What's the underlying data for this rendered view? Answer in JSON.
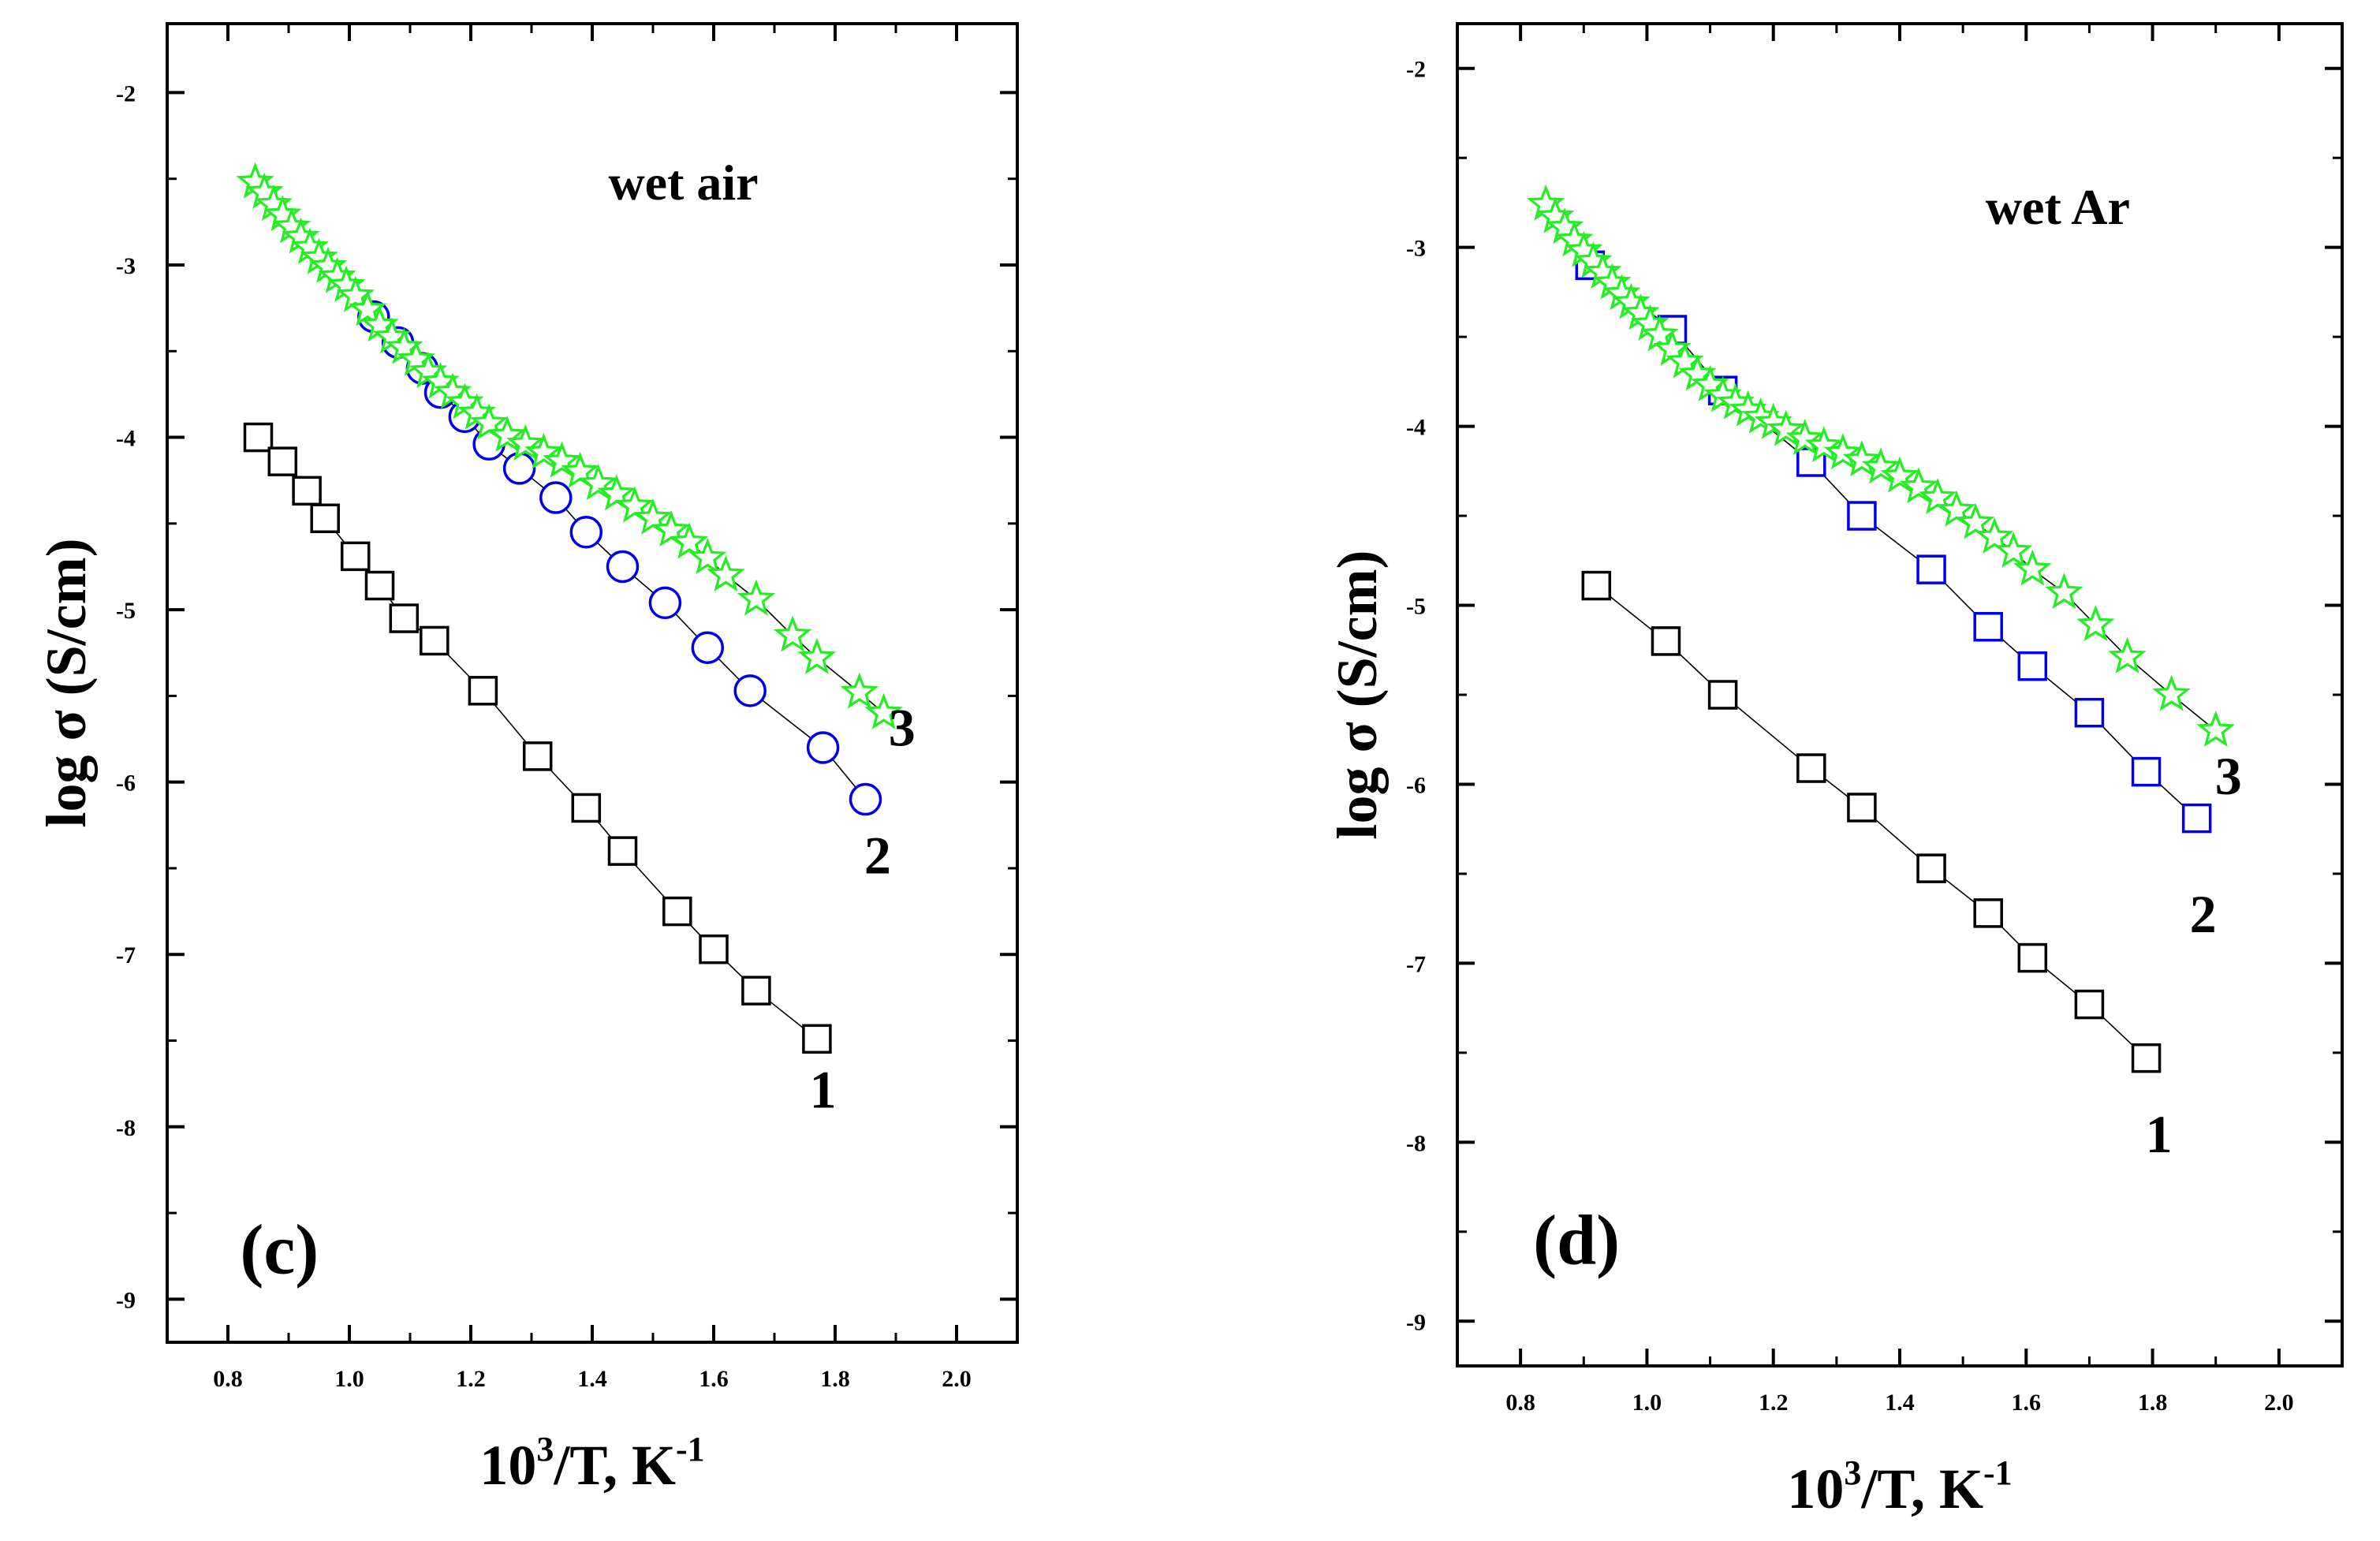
{
  "chart_data": [
    {
      "type": "scatter",
      "panel_label": "(c)",
      "annotation": "wet air",
      "xlabel_base": "10",
      "xlabel_sup": "3",
      "xlabel_mid": "/T, K",
      "xlabel_sup2": "-1",
      "ylabel": "log σ (S/cm)",
      "xlim": [
        0.7,
        2.1
      ],
      "ylim": [
        -9.25,
        -1.6
      ],
      "xticks": [
        0.8,
        1.0,
        1.2,
        1.4,
        1.6,
        1.8,
        2.0
      ],
      "xtick_labels": [
        "0.8",
        "1.0",
        "1.2",
        "1.4",
        "1.6",
        "1.8",
        "2.0"
      ],
      "yticks": [
        -9,
        -8,
        -7,
        -6,
        -5,
        -4,
        -3,
        -2
      ],
      "ytick_labels": [
        "-9",
        "-8",
        "-7",
        "-6",
        "-5",
        "-4",
        "-3",
        "-2"
      ],
      "series": [
        {
          "name": "1",
          "label": "1",
          "marker": "square",
          "color": "#000000",
          "connected": true,
          "label_at": [
            1.78,
            -7.78
          ],
          "x": [
            0.85,
            0.89,
            0.93,
            0.96,
            1.01,
            1.05,
            1.09,
            1.14,
            1.22,
            1.31,
            1.39,
            1.45,
            1.54,
            1.6,
            1.67,
            1.77
          ],
          "y": [
            -4.0,
            -4.14,
            -4.31,
            -4.47,
            -4.69,
            -4.86,
            -5.05,
            -5.18,
            -5.47,
            -5.85,
            -6.15,
            -6.4,
            -6.75,
            -6.97,
            -7.21,
            -7.49
          ]
        },
        {
          "name": "2",
          "label": "2",
          "marker": "circle",
          "color": "#0000ee",
          "connected": true,
          "label_at": [
            1.87,
            -6.42
          ],
          "x": [
            1.04,
            1.08,
            1.12,
            1.15,
            1.19,
            1.23,
            1.28,
            1.34,
            1.39,
            1.45,
            1.52,
            1.59,
            1.66,
            1.78,
            1.85
          ],
          "y": [
            -3.3,
            -3.45,
            -3.6,
            -3.74,
            -3.88,
            -4.04,
            -4.18,
            -4.35,
            -4.55,
            -4.75,
            -4.96,
            -5.22,
            -5.47,
            -5.8,
            -6.1
          ]
        },
        {
          "name": "3",
          "label": "3",
          "marker": "star",
          "color": "#22ee22",
          "connected": true,
          "label_at": [
            1.91,
            -5.68
          ],
          "x": [
            0.845,
            0.86,
            0.875,
            0.89,
            0.905,
            0.92,
            0.935,
            0.95,
            0.965,
            0.98,
            0.995,
            1.01,
            1.03,
            1.05,
            1.07,
            1.09,
            1.11,
            1.13,
            1.15,
            1.17,
            1.19,
            1.21,
            1.23,
            1.26,
            1.29,
            1.32,
            1.35,
            1.38,
            1.41,
            1.44,
            1.47,
            1.5,
            1.53,
            1.56,
            1.59,
            1.62,
            1.67,
            1.73,
            1.77,
            1.84,
            1.88
          ],
          "y": [
            -2.52,
            -2.58,
            -2.65,
            -2.71,
            -2.78,
            -2.84,
            -2.9,
            -2.96,
            -3.01,
            -3.07,
            -3.12,
            -3.18,
            -3.26,
            -3.35,
            -3.42,
            -3.48,
            -3.55,
            -3.62,
            -3.68,
            -3.74,
            -3.8,
            -3.86,
            -3.92,
            -3.99,
            -4.04,
            -4.09,
            -4.14,
            -4.2,
            -4.27,
            -4.33,
            -4.4,
            -4.47,
            -4.54,
            -4.61,
            -4.7,
            -4.8,
            -4.94,
            -5.15,
            -5.28,
            -5.48,
            -5.6
          ]
        }
      ]
    },
    {
      "type": "scatter",
      "panel_label": "(d)",
      "annotation": "wet Ar",
      "xlabel_base": "10",
      "xlabel_sup": "3",
      "xlabel_mid": "/T, K",
      "xlabel_sup2": "-1",
      "ylabel": "log σ (S/cm)",
      "xlim": [
        0.7,
        2.1
      ],
      "ylim": [
        -9.25,
        -1.75
      ],
      "xticks": [
        0.8,
        1.0,
        1.2,
        1.4,
        1.6,
        1.8,
        2.0
      ],
      "xtick_labels": [
        "0.8",
        "1.0",
        "1.2",
        "1.4",
        "1.6",
        "1.8",
        "2.0"
      ],
      "yticks": [
        -9,
        -8,
        -7,
        -6,
        -5,
        -4,
        -3,
        -2
      ],
      "ytick_labels": [
        "-9",
        "-8",
        "-7",
        "-6",
        "-5",
        "-4",
        "-3",
        "-2"
      ],
      "series": [
        {
          "name": "1",
          "label": "1",
          "marker": "square",
          "color": "#000000",
          "connected": true,
          "label_at": [
            1.81,
            -7.95
          ],
          "x": [
            0.92,
            1.03,
            1.12,
            1.26,
            1.34,
            1.45,
            1.54,
            1.61,
            1.7,
            1.79
          ],
          "y": [
            -4.89,
            -5.2,
            -5.5,
            -5.91,
            -6.13,
            -6.47,
            -6.72,
            -6.97,
            -7.23,
            -7.53
          ]
        },
        {
          "name": "2",
          "label": "2",
          "marker": "square",
          "color": "#0000ee",
          "connected": true,
          "label_at": [
            1.88,
            -6.72
          ],
          "x": [
            0.91,
            1.04,
            1.12,
            1.26,
            1.34,
            1.45,
            1.54,
            1.61,
            1.7,
            1.79,
            1.87
          ],
          "y": [
            -3.1,
            -3.46,
            -3.8,
            -4.2,
            -4.5,
            -4.8,
            -5.12,
            -5.34,
            -5.6,
            -5.93,
            -6.19
          ]
        },
        {
          "name": "3",
          "label": "3",
          "marker": "star",
          "color": "#22ee22",
          "connected": true,
          "label_at": [
            1.92,
            -5.95
          ],
          "x": [
            0.84,
            0.855,
            0.87,
            0.885,
            0.9,
            0.915,
            0.93,
            0.945,
            0.96,
            0.975,
            0.99,
            1.005,
            1.02,
            1.04,
            1.06,
            1.08,
            1.1,
            1.12,
            1.14,
            1.16,
            1.18,
            1.2,
            1.22,
            1.25,
            1.28,
            1.31,
            1.34,
            1.37,
            1.4,
            1.43,
            1.46,
            1.49,
            1.52,
            1.55,
            1.58,
            1.61,
            1.66,
            1.71,
            1.76,
            1.83,
            1.9
          ],
          "y": [
            -2.76,
            -2.83,
            -2.89,
            -2.96,
            -3.02,
            -3.08,
            -3.14,
            -3.2,
            -3.26,
            -3.31,
            -3.37,
            -3.43,
            -3.49,
            -3.57,
            -3.64,
            -3.71,
            -3.77,
            -3.83,
            -3.87,
            -3.91,
            -3.95,
            -3.98,
            -4.02,
            -4.07,
            -4.11,
            -4.15,
            -4.19,
            -4.23,
            -4.28,
            -4.34,
            -4.4,
            -4.47,
            -4.54,
            -4.62,
            -4.7,
            -4.8,
            -4.93,
            -5.11,
            -5.29,
            -5.5,
            -5.7
          ]
        }
      ]
    }
  ]
}
